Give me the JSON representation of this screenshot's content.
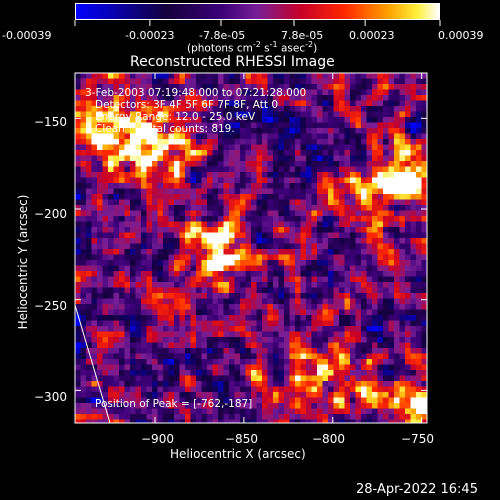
{
  "colorbar": {
    "tick_labels": [
      "-0.00039",
      "-0.00023",
      "-7.8e-05",
      "7.8e-05",
      "0.00023",
      "0.00039"
    ],
    "tick_values": [
      -0.00039,
      -0.00023,
      -7.8e-05,
      7.8e-05,
      0.00023,
      0.00039
    ],
    "units_main": "(photons cm",
    "units_sup1": "-2",
    "units_mid": " s",
    "units_sup2": "-1",
    "units_end": " asec",
    "units_sup3": "-2",
    "units_close": ")"
  },
  "chart_data": {
    "type": "heatmap",
    "title": "Reconstructed RHESSI Image",
    "xlabel": "Heliocentric X (arcsec)",
    "ylabel": "Heliocentric Y (arcsec)",
    "xlim": [
      -945,
      -747
    ],
    "ylim": [
      -318,
      -125
    ],
    "x_ticks": [
      -900,
      -850,
      -800,
      -750
    ],
    "y_ticks": [
      -150,
      -200,
      -250,
      -300
    ],
    "x_tick_labels": [
      "−900",
      "−850",
      "−800",
      "−750"
    ],
    "y_tick_labels": [
      "−150",
      "−200",
      "−250",
      "−300"
    ],
    "color_range": [
      -0.00039,
      0.00039
    ],
    "peak": [
      -762,
      -187
    ],
    "bright_regions": [
      {
        "x": -865,
        "y": -225,
        "relative_intensity": 0.95
      },
      {
        "x": -900,
        "y": -165,
        "relative_intensity": 0.8
      },
      {
        "x": -760,
        "y": -185,
        "relative_intensity": 1.0
      },
      {
        "x": -757,
        "y": -308,
        "relative_intensity": 0.9
      },
      {
        "x": -805,
        "y": -295,
        "relative_intensity": 0.75
      },
      {
        "x": -920,
        "y": -150,
        "relative_intensity": 0.7
      }
    ],
    "annotations": [
      "3-Feb-2003 07:19:48.000 to 07:21:28.000",
      "Detectors: 3F 4F 5F 6F 7F 8F, Att 0",
      "Energy Range: 12.0 - 25.0 keV",
      "Clean     Total counts: 819.",
      "Position of Peak = [-762,-187]"
    ]
  },
  "footer_date": "28-Apr-2022 16:45"
}
